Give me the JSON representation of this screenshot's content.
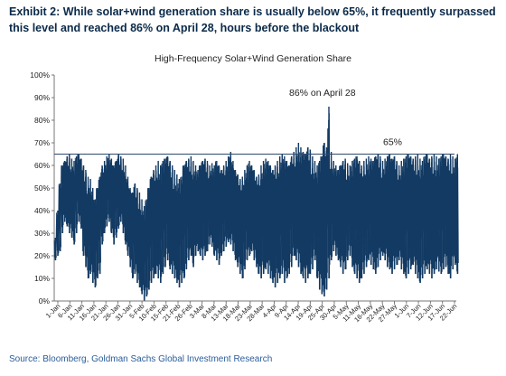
{
  "exhibit_title": "Exhibit 2: While solar+wind generation share is usually below 65%, it frequently surpassed this level and reached 86% on April 28, hours before the blackout",
  "source": "Source: Bloomberg, Goldman Sachs Global Investment Research",
  "colors": {
    "series": "#123a63",
    "refline": "#2c4a6e",
    "title": "#0b2a4a",
    "source": "#2b5d9b"
  },
  "chart_data": {
    "type": "line",
    "title": "High-Frequency Solar+Wind Generation Share",
    "ylim": [
      0,
      100
    ],
    "y_ticks": [
      "0%",
      "10%",
      "20%",
      "30%",
      "40%",
      "50%",
      "60%",
      "70%",
      "80%",
      "90%",
      "100%"
    ],
    "x_ticks": [
      "1-Jan",
      "6-Jan",
      "11-Jan",
      "16-Jan",
      "21-Jan",
      "26-Jan",
      "31-Jan",
      "5-Feb",
      "10-Feb",
      "15-Feb",
      "21-Feb",
      "26-Feb",
      "3-Mar",
      "8-Mar",
      "13-Mar",
      "18-Mar",
      "23-Mar",
      "28-Mar",
      "4-Apr",
      "9-Apr",
      "14-Apr",
      "19-Apr",
      "25-Apr",
      "30-Apr",
      "5-May",
      "11-May",
      "16-May",
      "22-May",
      "27-May",
      "1-Jun",
      "7-Jun",
      "12-Jun",
      "17-Jun",
      "22-Jun"
    ],
    "reference_line": {
      "value": 65,
      "label": "65%"
    },
    "annotation": {
      "text": "86% on April 28",
      "date": "28-Apr",
      "value": 86
    },
    "series": [
      {
        "envelope_by_day": [
          [
            1,
            18,
            28
          ],
          [
            2,
            20,
            40
          ],
          [
            3,
            22,
            52
          ],
          [
            4,
            30,
            60
          ],
          [
            5,
            35,
            62
          ],
          [
            6,
            33,
            64
          ],
          [
            7,
            30,
            65
          ],
          [
            8,
            28,
            63
          ],
          [
            9,
            25,
            62
          ],
          [
            10,
            30,
            64
          ],
          [
            11,
            35,
            65
          ],
          [
            12,
            32,
            63
          ],
          [
            13,
            20,
            60
          ],
          [
            14,
            15,
            58
          ],
          [
            15,
            10,
            55
          ],
          [
            16,
            12,
            54
          ],
          [
            17,
            8,
            50
          ],
          [
            18,
            6,
            45
          ],
          [
            19,
            10,
            50
          ],
          [
            20,
            12,
            55
          ],
          [
            21,
            25,
            60
          ],
          [
            22,
            30,
            62
          ],
          [
            23,
            33,
            64
          ],
          [
            24,
            35,
            65
          ],
          [
            25,
            30,
            63
          ],
          [
            26,
            25,
            60
          ],
          [
            27,
            28,
            62
          ],
          [
            28,
            32,
            65
          ],
          [
            29,
            35,
            64
          ],
          [
            30,
            30,
            63
          ],
          [
            31,
            25,
            60
          ],
          [
            32,
            20,
            55
          ],
          [
            33,
            15,
            50
          ],
          [
            34,
            10,
            48
          ],
          [
            35,
            12,
            52
          ],
          [
            36,
            8,
            50
          ],
          [
            37,
            6,
            48
          ],
          [
            38,
            3,
            45
          ],
          [
            39,
            0,
            42
          ],
          [
            40,
            2,
            45
          ],
          [
            41,
            5,
            50
          ],
          [
            42,
            8,
            55
          ],
          [
            43,
            10,
            58
          ],
          [
            44,
            12,
            60
          ],
          [
            45,
            10,
            62
          ],
          [
            46,
            8,
            60
          ],
          [
            47,
            12,
            62
          ],
          [
            48,
            15,
            63
          ],
          [
            49,
            18,
            64
          ],
          [
            50,
            14,
            62
          ],
          [
            51,
            12,
            60
          ],
          [
            52,
            10,
            58
          ],
          [
            53,
            8,
            56
          ],
          [
            54,
            6,
            54
          ],
          [
            55,
            8,
            55
          ],
          [
            56,
            10,
            60
          ],
          [
            57,
            14,
            62
          ],
          [
            58,
            18,
            63
          ],
          [
            59,
            20,
            64
          ],
          [
            60,
            15,
            62
          ],
          [
            61,
            20,
            60
          ],
          [
            62,
            22,
            58
          ],
          [
            63,
            20,
            60
          ],
          [
            64,
            18,
            62
          ],
          [
            65,
            20,
            63
          ],
          [
            66,
            22,
            62
          ],
          [
            67,
            25,
            60
          ],
          [
            68,
            24,
            61
          ],
          [
            69,
            20,
            60
          ],
          [
            70,
            18,
            62
          ],
          [
            71,
            16,
            60
          ],
          [
            72,
            20,
            58
          ],
          [
            73,
            22,
            60
          ],
          [
            74,
            24,
            62
          ],
          [
            75,
            26,
            64
          ],
          [
            76,
            25,
            66
          ],
          [
            77,
            22,
            62
          ],
          [
            78,
            18,
            58
          ],
          [
            79,
            15,
            56
          ],
          [
            80,
            12,
            54
          ],
          [
            81,
            10,
            55
          ],
          [
            82,
            14,
            58
          ],
          [
            83,
            18,
            60
          ],
          [
            84,
            20,
            62
          ],
          [
            85,
            22,
            60
          ],
          [
            86,
            18,
            58
          ],
          [
            87,
            15,
            55
          ],
          [
            88,
            12,
            56
          ],
          [
            89,
            10,
            60
          ],
          [
            90,
            12,
            62
          ],
          [
            91,
            14,
            63
          ],
          [
            92,
            12,
            62
          ],
          [
            93,
            10,
            60
          ],
          [
            94,
            8,
            58
          ],
          [
            95,
            6,
            60
          ],
          [
            96,
            8,
            62
          ],
          [
            97,
            10,
            64
          ],
          [
            98,
            12,
            65
          ],
          [
            99,
            8,
            64
          ],
          [
            100,
            10,
            62
          ],
          [
            101,
            12,
            60
          ],
          [
            102,
            15,
            64
          ],
          [
            103,
            20,
            66
          ],
          [
            104,
            18,
            68
          ],
          [
            105,
            15,
            70
          ],
          [
            106,
            12,
            68
          ],
          [
            107,
            10,
            66
          ],
          [
            108,
            8,
            65
          ],
          [
            109,
            10,
            68
          ],
          [
            110,
            12,
            67
          ],
          [
            111,
            14,
            64
          ],
          [
            112,
            18,
            62
          ],
          [
            113,
            10,
            60
          ],
          [
            114,
            5,
            62
          ],
          [
            115,
            3,
            64
          ],
          [
            116,
            2,
            70
          ],
          [
            117,
            5,
            68
          ],
          [
            118,
            10,
            86
          ],
          [
            119,
            18,
            66
          ],
          [
            120,
            22,
            62
          ],
          [
            121,
            20,
            60
          ],
          [
            122,
            18,
            58
          ],
          [
            123,
            15,
            60
          ],
          [
            124,
            12,
            62
          ],
          [
            125,
            14,
            63
          ],
          [
            126,
            18,
            61
          ],
          [
            127,
            20,
            60
          ],
          [
            128,
            15,
            62
          ],
          [
            129,
            12,
            63
          ],
          [
            130,
            10,
            64
          ],
          [
            131,
            8,
            62
          ],
          [
            132,
            10,
            60
          ],
          [
            133,
            12,
            62
          ],
          [
            134,
            15,
            63
          ],
          [
            135,
            18,
            64
          ],
          [
            136,
            16,
            63
          ],
          [
            137,
            14,
            62
          ],
          [
            138,
            12,
            64
          ],
          [
            139,
            15,
            65
          ],
          [
            140,
            18,
            64
          ],
          [
            141,
            20,
            62
          ],
          [
            142,
            18,
            63
          ],
          [
            143,
            15,
            64
          ],
          [
            144,
            14,
            65
          ],
          [
            145,
            12,
            63
          ],
          [
            146,
            14,
            64
          ],
          [
            147,
            16,
            62
          ],
          [
            148,
            18,
            60
          ],
          [
            149,
            14,
            62
          ],
          [
            150,
            12,
            63
          ],
          [
            151,
            10,
            64
          ],
          [
            152,
            12,
            65
          ],
          [
            153,
            14,
            64
          ],
          [
            154,
            16,
            63
          ],
          [
            155,
            12,
            64
          ],
          [
            156,
            10,
            65
          ],
          [
            157,
            8,
            63
          ],
          [
            158,
            10,
            62
          ],
          [
            159,
            12,
            64
          ],
          [
            160,
            14,
            65
          ],
          [
            161,
            12,
            63
          ],
          [
            162,
            10,
            64
          ],
          [
            163,
            12,
            65
          ],
          [
            164,
            14,
            64
          ],
          [
            165,
            13,
            63
          ],
          [
            166,
            12,
            64
          ],
          [
            167,
            14,
            65
          ],
          [
            168,
            15,
            64
          ],
          [
            169,
            12,
            63
          ],
          [
            170,
            10,
            65
          ],
          [
            171,
            14,
            64
          ],
          [
            172,
            16,
            63
          ],
          [
            173,
            12,
            65
          ]
        ]
      }
    ]
  }
}
